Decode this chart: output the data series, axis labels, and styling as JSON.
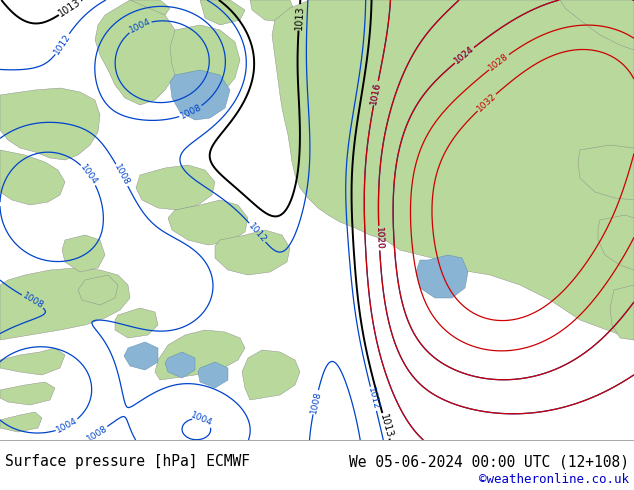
{
  "title_left": "Surface pressure [hPa] ECMWF",
  "title_right": "We 05-06-2024 00:00 UTC (12+108)",
  "watermark": "©weatheronline.co.uk",
  "footer_bg": "#ffffff",
  "footer_text_color": "#000000",
  "watermark_color": "#0000cc",
  "ocean_color": "#d0dce8",
  "land_color": "#b8d89c",
  "fig_width": 6.34,
  "fig_height": 4.9,
  "dpi": 100,
  "title_fontsize": 10.5,
  "watermark_fontsize": 9.0,
  "blue_color": "#0044cc",
  "red_color": "#cc0000",
  "black_color": "#000000",
  "dark_line_color": "#001166"
}
